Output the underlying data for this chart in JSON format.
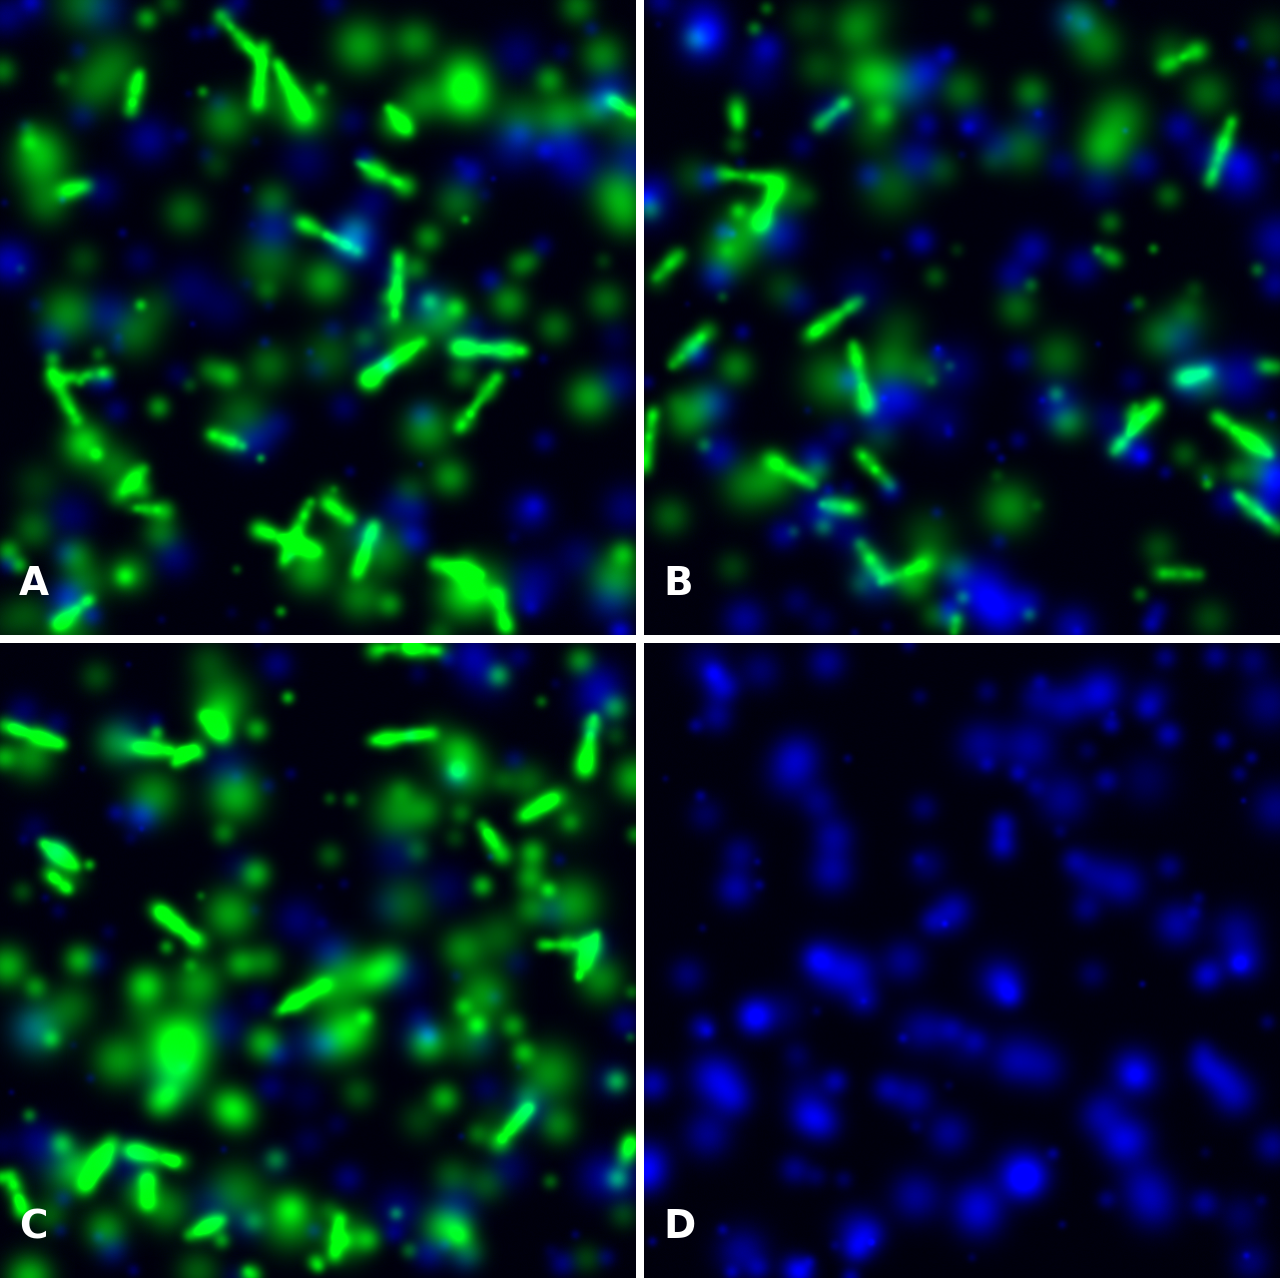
{
  "panels": [
    "A",
    "B",
    "C",
    "D"
  ],
  "label_fontsize": 28,
  "label_color": "white",
  "label_fontweight": "bold",
  "separator_color": "white",
  "figsize": [
    12.8,
    12.78
  ],
  "dpi": 100,
  "panel_configs": [
    {
      "id": "A",
      "has_green": true,
      "green_intensity": 0.6,
      "blue_intensity": 0.45,
      "n_green_blobs": 120,
      "n_blue_blobs": 80,
      "seed": 42
    },
    {
      "id": "B",
      "has_green": true,
      "green_intensity": 0.5,
      "blue_intensity": 0.55,
      "n_green_blobs": 100,
      "n_blue_blobs": 90,
      "seed": 123
    },
    {
      "id": "C",
      "has_green": true,
      "green_intensity": 0.7,
      "blue_intensity": 0.4,
      "n_green_blobs": 140,
      "n_blue_blobs": 70,
      "seed": 77
    },
    {
      "id": "D",
      "has_green": false,
      "green_intensity": 0.0,
      "blue_intensity": 0.6,
      "n_green_blobs": 0,
      "n_blue_blobs": 130,
      "seed": 200
    }
  ]
}
